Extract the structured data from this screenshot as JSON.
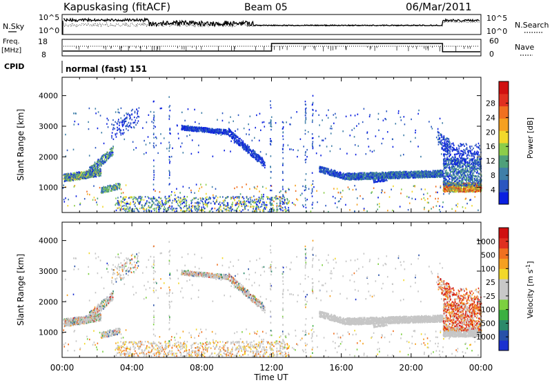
{
  "header": {
    "station": "Kapuskasing (fitACF)",
    "beam": "Beam 05",
    "date": "06/Mar/2011"
  },
  "labels": {
    "nsky": "N.Sky",
    "freq": "Freq.",
    "mhz": "[MHz]",
    "cpid": "CPID",
    "nsearch": "N.Search",
    "nave": "Nave",
    "cpid_value": "normal (fast) 151"
  },
  "noise_axis": {
    "left_top": "10^5",
    "left_bottom": "10^0",
    "right_top": "10^5",
    "right_bottom": "10^0"
  },
  "freq_axis": {
    "left_top": "18",
    "left_bottom": "8",
    "right_top": "60",
    "right_bottom": "0"
  },
  "chart_data": [
    {
      "type": "heatmap",
      "title": "",
      "xlabel": "Time UT",
      "ylabel": "Slant Range [km]",
      "x_ticks": [
        "00:00",
        "04:00",
        "08:00",
        "12:00",
        "16:00",
        "20:00",
        "00:00"
      ],
      "xlim_hours": [
        0,
        24
      ],
      "ylim_km": [
        180,
        4600
      ],
      "y_ticks": [
        1000,
        2000,
        3000,
        4000
      ],
      "colorbar": {
        "label": "Power [dB]",
        "ticks": [
          "4",
          "8",
          "12",
          "16",
          "20",
          "24",
          "28"
        ],
        "colors": [
          "#0a1fe0",
          "#2a56c0",
          "#3f7fa8",
          "#4ea07a",
          "#8ccd4a",
          "#f2d82a",
          "#f5a020",
          "#f07020",
          "#e03020",
          "#d01010"
        ]
      }
    },
    {
      "type": "heatmap",
      "title": "",
      "xlabel": "Time UT",
      "ylabel": "Slant Range [km]",
      "x_ticks": [
        "00:00",
        "04:00",
        "08:00",
        "12:00",
        "16:00",
        "20:00",
        "00:00"
      ],
      "xlim_hours": [
        0,
        24
      ],
      "ylim_km": [
        180,
        4600
      ],
      "y_ticks": [
        1000,
        2000,
        3000,
        4000
      ],
      "colorbar": {
        "label": "Velocity [m s^-1]",
        "ticks": [
          "1000",
          "500",
          "100",
          "25",
          "-25",
          "-100",
          "-500",
          "-1000"
        ],
        "colors": [
          "#1a30d0",
          "#2850a8",
          "#2c8a6a",
          "#3cb040",
          "#7cd040",
          "#c8c8c8",
          "#c8c8c8",
          "#f2d82a",
          "#f5a020",
          "#f07020",
          "#e03020",
          "#d01010"
        ]
      }
    }
  ]
}
